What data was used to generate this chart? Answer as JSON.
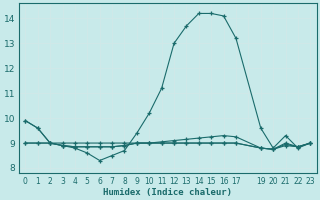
{
  "xlabel": "Humidex (Indice chaleur)",
  "bg_color": "#c8eaea",
  "line_color": "#1a6b6b",
  "grid_color": "#d0e8e8",
  "xlim": [
    -0.5,
    23.5
  ],
  "ylim": [
    7.8,
    14.6
  ],
  "yticks": [
    8,
    9,
    10,
    11,
    12,
    13,
    14
  ],
  "xtick_labels": [
    "0",
    "1",
    "2",
    "3",
    "4",
    "5",
    "6",
    "7",
    "8",
    "9",
    "10",
    "11",
    "12",
    "13",
    "14",
    "15",
    "16",
    "17",
    "",
    "19",
    "20",
    "21",
    "22",
    "23"
  ],
  "xtick_pos": [
    0,
    1,
    2,
    3,
    4,
    5,
    6,
    7,
    8,
    9,
    10,
    11,
    12,
    13,
    14,
    15,
    16,
    17,
    18,
    19,
    20,
    21,
    22,
    23
  ],
  "series": [
    {
      "x": [
        0,
        1,
        2,
        3,
        4,
        5,
        6,
        7,
        8,
        9,
        10,
        11,
        12,
        13,
        14,
        15,
        16,
        17,
        19,
        20,
        21,
        22,
        23
      ],
      "y": [
        9.9,
        9.6,
        9.0,
        8.9,
        8.8,
        8.6,
        8.3,
        8.5,
        8.7,
        9.4,
        10.2,
        11.2,
        13.0,
        13.7,
        14.2,
        14.2,
        14.1,
        13.2,
        9.6,
        8.8,
        9.3,
        8.8,
        9.0
      ]
    },
    {
      "x": [
        0,
        1,
        2,
        3,
        4,
        5,
        6,
        7,
        8,
        9,
        10,
        11,
        12,
        13,
        14,
        15,
        16,
        17,
        19,
        20,
        21,
        22,
        23
      ],
      "y": [
        9.0,
        9.0,
        9.0,
        8.9,
        8.85,
        8.85,
        8.85,
        8.85,
        8.9,
        9.0,
        9.0,
        9.05,
        9.1,
        9.15,
        9.2,
        9.25,
        9.3,
        9.25,
        8.8,
        8.75,
        8.95,
        8.85,
        9.0
      ]
    },
    {
      "x": [
        0,
        1,
        2,
        3,
        4,
        5,
        6,
        7,
        8,
        9,
        10,
        11,
        12,
        13,
        14,
        15,
        16,
        17,
        19,
        20,
        21,
        22,
        23
      ],
      "y": [
        9.0,
        9.0,
        9.0,
        8.9,
        8.85,
        8.85,
        8.85,
        8.85,
        8.9,
        9.0,
        9.0,
        9.0,
        9.0,
        9.0,
        9.0,
        9.0,
        9.0,
        9.0,
        8.8,
        8.75,
        8.9,
        8.85,
        9.0
      ]
    },
    {
      "x": [
        0,
        1,
        2,
        3,
        4,
        5,
        6,
        7,
        8,
        9,
        10,
        11,
        12,
        13,
        14,
        15,
        16,
        17,
        19,
        20,
        21,
        22,
        23
      ],
      "y": [
        9.9,
        9.6,
        9.0,
        9.0,
        9.0,
        9.0,
        9.0,
        9.0,
        9.0,
        9.0,
        9.0,
        9.0,
        9.0,
        9.0,
        9.0,
        9.0,
        9.0,
        9.0,
        8.8,
        8.75,
        9.0,
        8.85,
        9.0
      ]
    }
  ]
}
